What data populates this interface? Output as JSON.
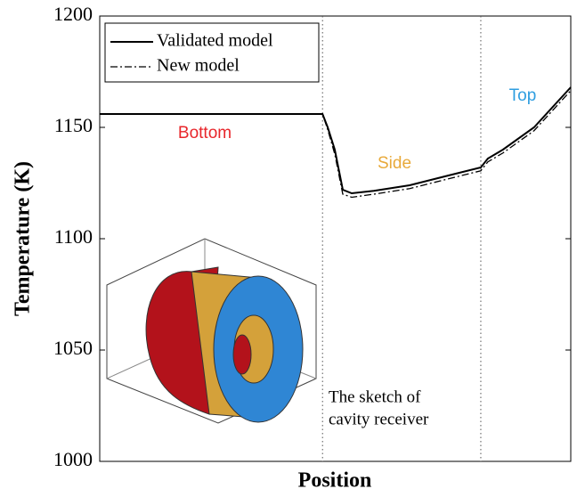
{
  "chart_data": {
    "type": "line",
    "x_label": "Position",
    "y_label": "Temperature (K)",
    "xlim": [
      0,
      1
    ],
    "ylim": [
      1000,
      1200
    ],
    "yticks": [
      1000,
      1050,
      1100,
      1150,
      1200
    ],
    "x": [
      0,
      0.473,
      0.484,
      0.499,
      0.516,
      0.535,
      0.582,
      0.658,
      0.733,
      0.809,
      0.824,
      0.856,
      0.922,
      1.0
    ],
    "series": [
      {
        "name": "Validated model",
        "color": "#000000",
        "dash": "solid",
        "values": [
          1156,
          1156,
          1150,
          1140,
          1122,
          1120.4,
          1121.5,
          1124,
          1128,
          1132,
          1136,
          1140,
          1150,
          1168
        ]
      },
      {
        "name": "New model",
        "color": "#000000",
        "dash": "dashdot",
        "values": [
          1156,
          1156,
          1149,
          1138,
          1120,
          1118.6,
          1120,
          1122.5,
          1126.5,
          1130.5,
          1134.5,
          1138.5,
          1148.5,
          1166.5
        ]
      }
    ],
    "dividers": [
      0.473,
      0.809
    ],
    "regions": [
      {
        "text": "Bottom",
        "color": "#e8262b"
      },
      {
        "text": "Side",
        "color": "#e8a93a"
      },
      {
        "text": "Top",
        "color": "#2f9ee0"
      }
    ],
    "annotation": [
      "The sketch of",
      "cavity receiver"
    ]
  }
}
